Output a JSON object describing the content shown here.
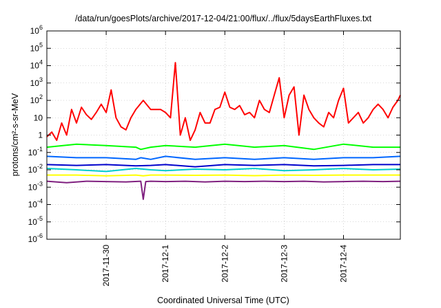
{
  "chart_data": {
    "type": "line",
    "title": "/data/run/goesPlots/archive/2017-12-04/21:00/flux/../flux/5daysEarthFluxes.txt",
    "xlabel": "Coordinated Universal Time (UTC)",
    "ylabel": "protons/cm²-s-sr-MeV",
    "yscale": "log",
    "ylim": [
      1e-06,
      1000000.0
    ],
    "xlim": [
      "2017-11-29T00:00",
      "2017-12-04T23:00"
    ],
    "grid": true,
    "legend": "none",
    "y_ticks": [
      {
        "base": "10",
        "exp": "-6",
        "value": 1e-06
      },
      {
        "base": "10",
        "exp": "-5",
        "value": 1e-05
      },
      {
        "base": "10",
        "exp": "-4",
        "value": 0.0001
      },
      {
        "base": "10",
        "exp": "-3",
        "value": 0.001
      },
      {
        "base": "10",
        "exp": "-2",
        "value": 0.01
      },
      {
        "base": "10",
        "exp": "-1",
        "value": 0.1
      },
      {
        "base": "1",
        "exp": "",
        "value": 1
      },
      {
        "base": "10",
        "exp": "",
        "value": 10
      },
      {
        "base": "10",
        "exp": "2",
        "value": 100
      },
      {
        "base": "10",
        "exp": "3",
        "value": 1000
      },
      {
        "base": "10",
        "exp": "4",
        "value": 10000
      },
      {
        "base": "10",
        "exp": "5",
        "value": 100000
      },
      {
        "base": "10",
        "exp": "6",
        "value": 1000000
      }
    ],
    "x_ticks": [
      {
        "label": "2017-11-30",
        "value": "2017-11-30T00:00"
      },
      {
        "label": "2017-12-1",
        "value": "2017-12-01T00:00"
      },
      {
        "label": "2017-12-2",
        "value": "2017-12-02T00:00"
      },
      {
        "label": "2017-12-3",
        "value": "2017-12-03T00:00"
      },
      {
        "label": "2017-12-4",
        "value": "2017-12-04T00:00"
      }
    ],
    "series": [
      {
        "color": "#ff0000",
        "x": [
          "2017-11-29T00:00",
          "2017-11-29T02:00",
          "2017-11-29T04:00",
          "2017-11-29T06:00",
          "2017-11-29T08:00",
          "2017-11-29T10:00",
          "2017-11-29T12:00",
          "2017-11-29T14:00",
          "2017-11-29T16:00",
          "2017-11-29T18:00",
          "2017-11-29T20:00",
          "2017-11-29T22:00",
          "2017-11-30T00:00",
          "2017-11-30T02:00",
          "2017-11-30T04:00",
          "2017-11-30T06:00",
          "2017-11-30T08:00",
          "2017-11-30T10:00",
          "2017-11-30T12:00",
          "2017-11-30T15:00",
          "2017-11-30T18:00",
          "2017-11-30T20:00",
          "2017-11-30T22:00",
          "2017-12-01T00:00",
          "2017-12-01T02:00",
          "2017-12-01T04:00",
          "2017-12-01T06:00",
          "2017-12-01T08:00",
          "2017-12-01T10:00",
          "2017-12-01T12:00",
          "2017-12-01T14:00",
          "2017-12-01T16:00",
          "2017-12-01T18:00",
          "2017-12-01T20:00",
          "2017-12-01T22:00",
          "2017-12-02T00:00",
          "2017-12-02T02:00",
          "2017-12-02T04:00",
          "2017-12-02T06:00",
          "2017-12-02T08:00",
          "2017-12-02T10:00",
          "2017-12-02T12:00",
          "2017-12-02T14:00",
          "2017-12-02T16:00",
          "2017-12-02T18:00",
          "2017-12-02T20:00",
          "2017-12-02T22:00",
          "2017-12-03T00:00",
          "2017-12-03T02:00",
          "2017-12-03T04:00",
          "2017-12-03T06:00",
          "2017-12-03T08:00",
          "2017-12-03T10:00",
          "2017-12-03T12:00",
          "2017-12-03T14:00",
          "2017-12-03T16:00",
          "2017-12-03T18:00",
          "2017-12-03T20:00",
          "2017-12-03T22:00",
          "2017-12-04T00:00",
          "2017-12-04T02:00",
          "2017-12-04T04:00",
          "2017-12-04T06:00",
          "2017-12-04T08:00",
          "2017-12-04T10:00",
          "2017-12-04T12:00",
          "2017-12-04T14:00",
          "2017-12-04T16:00",
          "2017-12-04T18:00",
          "2017-12-04T20:00",
          "2017-12-04T22:00",
          "2017-12-04T23:00"
        ],
        "y": [
          0.8,
          1.5,
          0.5,
          5,
          1,
          30,
          5,
          40,
          15,
          8,
          20,
          60,
          20,
          400,
          10,
          3,
          2,
          10,
          30,
          100,
          30,
          30,
          30,
          20,
          10,
          15000,
          1,
          10,
          0.5,
          2,
          20,
          5,
          5,
          30,
          40,
          300,
          40,
          30,
          50,
          15,
          20,
          10,
          100,
          30,
          20,
          200,
          2000,
          10,
          200,
          600,
          1,
          200,
          30,
          10,
          5,
          3,
          20,
          10,
          100,
          500,
          5,
          10,
          20,
          5,
          10,
          30,
          60,
          30,
          10,
          40,
          100,
          200
        ]
      },
      {
        "color": "#00ff00",
        "x": [
          "2017-11-29T00:00",
          "2017-11-29T12:00",
          "2017-11-30T00:00",
          "2017-11-30T12:00",
          "2017-11-30T14:00",
          "2017-11-30T18:00",
          "2017-12-01T00:00",
          "2017-12-01T12:00",
          "2017-12-02T00:00",
          "2017-12-02T12:00",
          "2017-12-03T00:00",
          "2017-12-03T12:00",
          "2017-12-04T00:00",
          "2017-12-04T12:00",
          "2017-12-04T23:00"
        ],
        "y": [
          0.2,
          0.3,
          0.25,
          0.2,
          0.15,
          0.2,
          0.25,
          0.2,
          0.3,
          0.2,
          0.25,
          0.15,
          0.3,
          0.2,
          0.2
        ]
      },
      {
        "color": "#0066ff",
        "x": [
          "2017-11-29T00:00",
          "2017-11-29T12:00",
          "2017-11-30T00:00",
          "2017-11-30T12:00",
          "2017-11-30T14:00",
          "2017-11-30T18:00",
          "2017-12-01T00:00",
          "2017-12-01T12:00",
          "2017-12-02T00:00",
          "2017-12-02T12:00",
          "2017-12-03T00:00",
          "2017-12-03T12:00",
          "2017-12-04T00:00",
          "2017-12-04T12:00",
          "2017-12-04T23:00"
        ],
        "y": [
          0.06,
          0.05,
          0.05,
          0.04,
          0.05,
          0.04,
          0.06,
          0.04,
          0.05,
          0.04,
          0.05,
          0.04,
          0.05,
          0.05,
          0.06
        ]
      },
      {
        "color": "#00cccc",
        "x": [
          "2017-11-29T00:00",
          "2017-11-29T12:00",
          "2017-11-30T00:00",
          "2017-11-30T12:00",
          "2017-11-30T18:00",
          "2017-12-01T00:00",
          "2017-12-01T12:00",
          "2017-12-02T00:00",
          "2017-12-02T12:00",
          "2017-12-03T00:00",
          "2017-12-03T12:00",
          "2017-12-04T00:00",
          "2017-12-04T12:00",
          "2017-12-04T23:00"
        ],
        "y": [
          0.012,
          0.01,
          0.008,
          0.012,
          0.01,
          0.009,
          0.011,
          0.01,
          0.012,
          0.009,
          0.01,
          0.012,
          0.01,
          0.011
        ]
      },
      {
        "color": "#0000cc",
        "x": [
          "2017-11-29T00:00",
          "2017-11-29T12:00",
          "2017-11-30T00:00",
          "2017-11-30T12:00",
          "2017-11-30T18:00",
          "2017-12-01T00:00",
          "2017-12-01T12:00",
          "2017-12-02T00:00",
          "2017-12-02T12:00",
          "2017-12-03T00:00",
          "2017-12-03T12:00",
          "2017-12-04T00:00",
          "2017-12-04T12:00",
          "2017-12-04T23:00"
        ],
        "y": [
          0.02,
          0.018,
          0.02,
          0.017,
          0.018,
          0.02,
          0.015,
          0.02,
          0.018,
          0.02,
          0.017,
          0.018,
          0.02,
          0.02
        ]
      },
      {
        "color": "#ffff00",
        "x": [
          "2017-11-29T00:00",
          "2017-11-29T12:00",
          "2017-11-30T00:00",
          "2017-11-30T12:00",
          "2017-11-30T15:00",
          "2017-11-30T18:00",
          "2017-12-01T00:00",
          "2017-12-01T12:00",
          "2017-12-02T00:00",
          "2017-12-02T12:00",
          "2017-12-03T00:00",
          "2017-12-03T12:00",
          "2017-12-04T00:00",
          "2017-12-04T12:00",
          "2017-12-04T23:00"
        ],
        "y": [
          0.005,
          0.005,
          0.0045,
          0.005,
          0.0045,
          0.005,
          0.005,
          0.0048,
          0.005,
          0.0046,
          0.005,
          0.0048,
          0.005,
          0.005,
          0.005
        ]
      },
      {
        "color": "#7f1f7f",
        "x": [
          "2017-11-29T00:00",
          "2017-11-29T08:00",
          "2017-11-29T16:00",
          "2017-11-30T00:00",
          "2017-11-30T08:00",
          "2017-11-30T14:00",
          "2017-11-30T15:00",
          "2017-11-30T16:00",
          "2017-11-30T18:00",
          "2017-12-01T00:00",
          "2017-12-01T08:00",
          "2017-12-01T16:00",
          "2017-12-02T00:00",
          "2017-12-02T08:00",
          "2017-12-02T16:00",
          "2017-12-03T00:00",
          "2017-12-03T08:00",
          "2017-12-03T16:00",
          "2017-12-04T00:00",
          "2017-12-04T08:00",
          "2017-12-04T16:00",
          "2017-12-04T23:00"
        ],
        "y": [
          0.0022,
          0.0018,
          0.0022,
          0.0021,
          0.002,
          0.0022,
          0.0002,
          0.0021,
          0.0022,
          0.0021,
          0.0022,
          0.002,
          0.0022,
          0.0021,
          0.0022,
          0.0021,
          0.0022,
          0.002,
          0.0021,
          0.0022,
          0.0021,
          0.0022
        ]
      }
    ]
  }
}
